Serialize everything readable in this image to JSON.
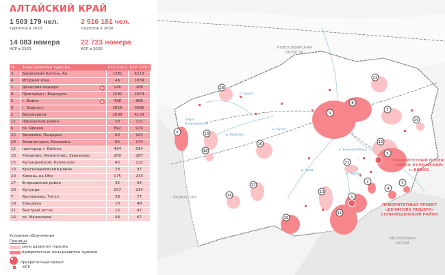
{
  "title": "АЛТАЙСКИЙ КРАЙ",
  "stats": [
    {
      "value": "1 503 179 чел.",
      "label": "турпоток в 2023",
      "accent": false
    },
    {
      "value": "2 516 181 чел.",
      "label": "турпоток в 2030",
      "accent": true
    },
    {
      "value": "14 083 номера",
      "label": "КСР в 2023",
      "accent": false
    },
    {
      "value": "22 723 номера",
      "label": "КСР в 2030",
      "accent": true
    }
  ],
  "table": {
    "headers": [
      "№",
      "Зоны развития туризма",
      "КСР 2023",
      "КСР 2030"
    ],
    "rows": [
      {
        "no": "3",
        "name": "Бирюзовая Катунь, Ая",
        "k23": "1381",
        "k30": "4210",
        "hl": true,
        "pri": false
      },
      {
        "no": "4",
        "name": "Игорная зона",
        "k23": "46",
        "k30": "1039",
        "hl": true,
        "pri": false
      },
      {
        "no": "1",
        "name": "Денисова пещера",
        "k23": "146",
        "k30": "268",
        "hl": true,
        "pri": true
      },
      {
        "no": "8",
        "name": "Пригород г. Барнаула",
        "k23": "1581",
        "k30": "1679",
        "hl": true,
        "pri": false
      },
      {
        "no": "5",
        "name": "г. Бийск",
        "k23": "438",
        "k30": "866",
        "hl": true,
        "pri": true
      },
      {
        "no": "9",
        "name": "г. Барнаул",
        "k23": "3026",
        "k30": "3086",
        "hl": true,
        "pri": false
      },
      {
        "no": "2",
        "name": "Белокуриха",
        "k23": "1009",
        "k30": "4133",
        "hl": true,
        "pri": false
      },
      {
        "no": "11",
        "name": "Чарышский район",
        "k23": "28",
        "k30": "132",
        "hl": true,
        "pri": false
      },
      {
        "no": "6",
        "name": "оз. Яровое",
        "k23": "892",
        "k30": "979",
        "hl": true,
        "pri": false
      },
      {
        "no": "22",
        "name": "Залесово, Пещерка",
        "k23": "63",
        "k30": "161",
        "hl": true,
        "pri": false
      },
      {
        "no": "10",
        "name": "Змеиногорск, Колывань",
        "k23": "85",
        "k30": "174",
        "hl": true,
        "pri": false
      },
      {
        "no": "12",
        "name": "пригород г. Бийска",
        "k23": "434",
        "k30": "514",
        "hl": false,
        "pri": false
      },
      {
        "no": "16",
        "name": "Романово, Мамонтово, Завьялово",
        "k23": "209",
        "k30": "287",
        "hl": false,
        "pri": false
      },
      {
        "no": "15",
        "name": "Кулундинское, Кучукское",
        "k23": "43",
        "k30": "122",
        "hl": false,
        "pri": false
      },
      {
        "no": "13",
        "name": "Краснощековский район",
        "k23": "28",
        "k30": "97",
        "hl": false,
        "pri": false
      },
      {
        "no": "20",
        "name": "Камень-на-Оби",
        "k23": "175",
        "k30": "233",
        "hl": false,
        "pri": false
      },
      {
        "no": "17",
        "name": "Егорьевский район",
        "k23": "35",
        "k30": "94",
        "hl": false,
        "pri": false
      },
      {
        "no": "18",
        "name": "Кулунда",
        "k23": "157",
        "k30": "214",
        "hl": false,
        "pri": false
      },
      {
        "no": "7",
        "name": "Кытманово, Тогул",
        "k23": "38",
        "k30": "77",
        "hl": false,
        "pri": false
      },
      {
        "no": "19",
        "name": "Ельцовка",
        "k23": "10",
        "k30": "48",
        "hl": false,
        "pri": false
      },
      {
        "no": "21",
        "name": "Быстрый исток",
        "k23": "15",
        "k30": "47",
        "hl": false,
        "pri": false
      },
      {
        "no": "14",
        "name": "оз. Малиновое",
        "k23": "48",
        "k30": "67",
        "hl": false,
        "pri": false
      }
    ]
  },
  "legend": {
    "title": "Условные обозначения",
    "borders": "Границы",
    "zones": "зоны развития туризма",
    "priority_zones": "приоритетные зоны развития туризма",
    "priority_project": "приоритетный проект",
    "ksr": "КСР"
  },
  "map": {
    "region_nsk_1": "НОВОСИБИРСКАЯ",
    "region_nsk_2": "ОБЛАСТЬ",
    "kazakhstan": "КАЗАХСТАН",
    "altai_1": "РЕСПУБЛИКА",
    "altai_2": "АЛТАЙ",
    "project1_1": "ПРИОРИТЕТНЫЙ ПРОЕКТ",
    "project1_2": "«БИЙСК КУПЕЧЕСКИЙ»",
    "project1_3": "г. БИЙСК",
    "project2_1": "ПРИОРИТЕТНЫЙ ПРОЕКТ",
    "project2_2": "«ДЕНИСОВА ПЕЩЕРА»",
    "project2_3": "СОЛОНЕШЕНСКИЙ РАЙОН",
    "lake_1": "озеро",
    "lake_2": "Кулундинское",
    "rivers": [
      "р. Бурла",
      "р. Кулунда",
      "р. Кучук",
      "р. Алей",
      "р. Чарыш",
      "р. Бельная Речка"
    ],
    "markers": [
      "22",
      "8",
      "9",
      "7",
      "19",
      "20",
      "6",
      "15",
      "16",
      "18",
      "12",
      "5",
      "21",
      "2",
      "4",
      "3",
      "17",
      "14",
      "13",
      "1",
      "10",
      "11"
    ]
  },
  "colors": {
    "accent": "#ef5a64",
    "zone": "#fbc3c6",
    "priority": "#f7868c"
  }
}
